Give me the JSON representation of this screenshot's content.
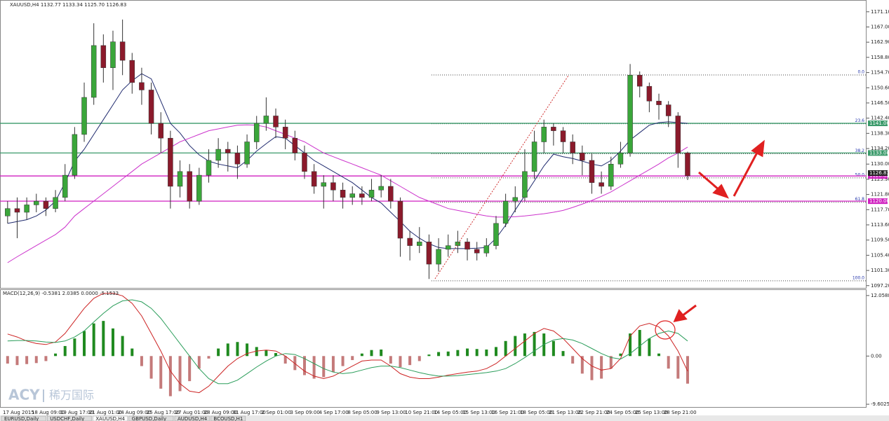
{
  "chart_data": [
    {
      "type": "candlestick",
      "title": "XAUUSD,H4 1132.77 1133.34 1125.70 1126.83",
      "categories": [
        "17 Aug 2015",
        null,
        null,
        "18 Aug 09:00",
        null,
        null,
        "19 Aug 17:00",
        null,
        null,
        "21 Aug 01:00",
        null,
        null,
        "24 Aug 09:00",
        null,
        null,
        "25 Aug 17:00",
        null,
        null,
        "27 Aug 01:00",
        null,
        null,
        "28 Aug 09:00",
        null,
        null,
        "31 Aug 17:00",
        null,
        null,
        "2 Sep 01:00",
        null,
        null,
        "3 Sep 09:00",
        null,
        null,
        "4 Sep 17:00",
        null,
        null,
        "8 Sep 05:00",
        null,
        null,
        "9 Sep 13:00",
        null,
        null,
        "10 Sep 21:00",
        null,
        null,
        "14 Sep 05:00",
        null,
        null,
        "15 Sep 13:00",
        null,
        null,
        "16 Sep 21:00",
        null,
        null,
        "18 Sep 05:00",
        null,
        null,
        "21 Sep 13:00",
        null,
        null,
        "22 Sep 21:00",
        null,
        null,
        "24 Sep 05:00",
        null,
        null,
        "25 Sep 13:00",
        null,
        null,
        "28 Sep 21:00",
        null,
        null
      ],
      "open": [
        1116,
        1118,
        1117,
        1119,
        1120,
        1118,
        1121,
        1127,
        1138,
        1148,
        1162,
        1156,
        1163,
        1158,
        1152,
        1150,
        1141,
        1137,
        1124,
        1128,
        1120,
        1127,
        1131,
        1134,
        1133,
        1130,
        1136,
        1141,
        1143,
        1140,
        1137,
        1133,
        1128,
        1124,
        1125,
        1123,
        1121,
        1122,
        1121,
        1123,
        1124,
        1120,
        1110,
        1108,
        1109,
        1103,
        1107,
        1108,
        1109,
        1107,
        1106,
        1108,
        1114,
        1120,
        1121,
        1128,
        1136,
        1140,
        1139,
        1136,
        1133,
        1131,
        1125,
        1124,
        1130,
        1133,
        1154,
        1151,
        1147,
        1146,
        1143,
        1133
      ],
      "high": [
        1120,
        1121,
        1121,
        1122,
        1121,
        1123,
        1130,
        1140,
        1152,
        1168,
        1165,
        1166,
        1169,
        1160,
        1156,
        1152,
        1144,
        1139,
        1131,
        1130,
        1129,
        1134,
        1137,
        1136,
        1135,
        1138,
        1143,
        1148,
        1145,
        1142,
        1139,
        1135,
        1130,
        1127,
        1127,
        1125,
        1124,
        1124,
        1126,
        1127,
        1126,
        1121,
        1112,
        1113,
        1111,
        1110,
        1111,
        1112,
        1110,
        1109,
        1110,
        1116,
        1122,
        1124,
        1134,
        1139,
        1142,
        1141,
        1140,
        1138,
        1135,
        1133,
        1128,
        1132,
        1136,
        1157,
        1155,
        1152,
        1149,
        1147,
        1144,
        1133.34
      ],
      "low": [
        1114,
        1110,
        1115,
        1117,
        1116,
        1117,
        1120,
        1126,
        1136,
        1146,
        1152,
        1150,
        1154,
        1149,
        1146,
        1138,
        1133,
        1118,
        1121,
        1118,
        1119,
        1125,
        1129,
        1128,
        1126,
        1129,
        1134,
        1139,
        1137,
        1134,
        1131,
        1126,
        1122,
        1118,
        1120,
        1118,
        1119,
        1119,
        1120,
        1121,
        1118,
        1105,
        1104,
        1106,
        1099,
        1101,
        1105,
        1106,
        1104,
        1104,
        1105,
        1107,
        1113,
        1117,
        1120,
        1126,
        1133,
        1135,
        1133,
        1130,
        1127,
        1122,
        1122,
        1123,
        1129,
        1132,
        1148,
        1144,
        1142,
        1140,
        1129,
        1125.7
      ],
      "close": [
        1118,
        1117,
        1119,
        1120,
        1118,
        1121,
        1127,
        1138,
        1148,
        1162,
        1156,
        1163,
        1158,
        1152,
        1150,
        1141,
        1137,
        1124,
        1128,
        1120,
        1127,
        1131,
        1134,
        1133,
        1130,
        1136,
        1141,
        1143,
        1140,
        1137,
        1133,
        1128,
        1124,
        1125,
        1123,
        1121,
        1122,
        1121,
        1123,
        1124,
        1120,
        1110,
        1108,
        1109,
        1103,
        1107,
        1108,
        1109,
        1107,
        1106,
        1108,
        1114,
        1120,
        1121,
        1128,
        1136,
        1140,
        1139,
        1136,
        1133,
        1131,
        1125,
        1124,
        1130,
        1133,
        1154,
        1151,
        1147,
        1146,
        1143,
        1133,
        1126.83
      ],
      "up_color": "#3aa63a",
      "down_color": "#8b1a2b",
      "lines": [
        {
          "color": "#1f2a6e",
          "values": [
            1114,
            1114.5,
            1115,
            1116,
            1117.6,
            1120,
            1125,
            1130.8,
            1134,
            1138,
            1142,
            1146,
            1150,
            1152.5,
            1154.4,
            1153,
            1147,
            1141,
            1138.4,
            1135,
            1132.5,
            1130.8,
            1130,
            1129.5,
            1129,
            1131,
            1133.5,
            1135.5,
            1137.4,
            1137,
            1135,
            1133,
            1131,
            1129.5,
            1128,
            1126.5,
            1125,
            1123,
            1121,
            1119.5,
            1117,
            1114.5,
            1111.9,
            1110,
            1108.5,
            1107.5,
            1107.2,
            1107.2,
            1107.2,
            1107.3,
            1107.5,
            1110,
            1113.5,
            1117.6,
            1121.5,
            1125.5,
            1129.5,
            1132.7,
            1132,
            1131.5,
            1130.8,
            1130,
            1129.5,
            1131,
            1133.5,
            1136.5,
            1138.5,
            1140.5,
            1141.2,
            1141.4,
            1141.2,
            1141
          ]
        },
        {
          "color": "#cc33cc",
          "values": [
            1103.4,
            1105,
            1106.5,
            1108,
            1109.5,
            1111,
            1113,
            1116,
            1118,
            1120,
            1122,
            1124,
            1126,
            1128,
            1130,
            1131.5,
            1133,
            1134.5,
            1136,
            1137,
            1138,
            1139,
            1139.5,
            1140,
            1140.5,
            1140.6,
            1140.5,
            1140,
            1139,
            1138,
            1137,
            1136,
            1134.5,
            1133,
            1132,
            1131,
            1130,
            1129,
            1128,
            1127,
            1125.5,
            1124,
            1122.5,
            1121,
            1120,
            1119,
            1118,
            1117.5,
            1117,
            1116.5,
            1116,
            1115.7,
            1115.7,
            1115.8,
            1116,
            1116.3,
            1116.6,
            1117,
            1117.5,
            1118.3,
            1119.2,
            1120.2,
            1121.3,
            1122.5,
            1124,
            1125.5,
            1127,
            1128.5,
            1130,
            1131.7,
            1133,
            1134.6
          ]
        }
      ],
      "levels": [
        {
          "value": 1141,
          "label": "1141.00",
          "color": "#3a9a6a"
        },
        {
          "value": 1133,
          "label": "1133.00",
          "color": "#3a9a6a"
        },
        {
          "value": 1126.8,
          "label": "1126.80",
          "color": "#d020c0"
        },
        {
          "value": 1120,
          "label": "1120.00",
          "color": "#d020c0"
        }
      ],
      "fib_levels": [
        {
          "label": "0.0",
          "price": 1154.05
        },
        {
          "label": "23.6",
          "price": 1140.9
        },
        {
          "label": "38.2",
          "price": 1132.8
        },
        {
          "label": "50.0",
          "price": 1126.3
        },
        {
          "label": "61.8",
          "price": 1119.7
        },
        {
          "label": "100.0",
          "price": 1098.5
        }
      ],
      "last_price": {
        "value": 1126.83,
        "label": "1126.83"
      },
      "ylim": [
        1096.4,
        1173.9
      ],
      "yticks": [
        {
          "value": 1171.1,
          "label": "1171.10"
        },
        {
          "value": 1167,
          "label": "1167.00"
        },
        {
          "value": 1162.9,
          "label": "1162.90"
        },
        {
          "value": 1158.8,
          "label": "1158.80"
        },
        {
          "value": 1154.7,
          "label": "1154.70"
        },
        {
          "value": 1150.6,
          "label": "1150.60"
        },
        {
          "value": 1146.5,
          "label": "1146.50"
        },
        {
          "value": 1142.4,
          "label": "1142.40"
        },
        {
          "value": 1138.3,
          "label": "1138.30"
        },
        {
          "value": 1134.2,
          "label": "1134.20"
        },
        {
          "value": 1130,
          "label": "1130.00"
        },
        {
          "value": 1125.9,
          "label": "1125.90"
        },
        {
          "value": 1121.8,
          "label": "1121.80"
        },
        {
          "value": 1117.7,
          "label": "1117.70"
        },
        {
          "value": 1113.6,
          "label": "1113.60"
        },
        {
          "value": 1109.5,
          "label": "1109.50"
        },
        {
          "value": 1105.4,
          "label": "1105.40"
        },
        {
          "value": 1101.3,
          "label": "1101.30"
        },
        {
          "value": 1097.2,
          "label": "1097.20"
        }
      ]
    },
    {
      "type": "macd",
      "title": "MACD(12,26,9) -0.5381 2.0385 0.0000 -5.1533",
      "histogram": {
        "up_color": "#1f8a1f",
        "down_color": "#c47a7a",
        "values": [
          -1.5,
          -1.8,
          -1.6,
          -1.4,
          -1.0,
          0.5,
          2.0,
          3.5,
          5.0,
          6.5,
          7.0,
          5.5,
          4.0,
          1.5,
          -2.0,
          -4.5,
          -6.5,
          -8.0,
          -7.0,
          -5.0,
          -2.5,
          -0.5,
          1.5,
          2.5,
          2.8,
          2.5,
          1.8,
          1.2,
          0.6,
          -1.5,
          -2.8,
          -3.8,
          -4.5,
          -4.2,
          -3.2,
          -2.0,
          -0.8,
          0.5,
          1.2,
          1.3,
          -1.5,
          -2.2,
          -1.8,
          -1.0,
          0.3,
          0.8,
          0.9,
          1.2,
          1.5,
          1.4,
          1.3,
          1.8,
          3.0,
          4.0,
          4.5,
          4.8,
          4.5,
          3.0,
          1.0,
          -1.5,
          -3.5,
          -4.8,
          -4.5,
          -2.5,
          0.5,
          4.5,
          5.2,
          3.5,
          0.5,
          -2.5,
          -4.5,
          -5.5
        ]
      },
      "series": [
        {
          "color": "#cc2222",
          "values": [
            4.4,
            3.8,
            3.0,
            2.5,
            2.3,
            2.8,
            4.5,
            7,
            9.5,
            11.5,
            12.5,
            12.5,
            12,
            10.5,
            8,
            4.5,
            1,
            -3,
            -5.5,
            -7,
            -7.3,
            -6,
            -4,
            -2,
            -0.5,
            0.5,
            1,
            1.2,
            1,
            0,
            -1.5,
            -3,
            -4,
            -4.5,
            -4,
            -3,
            -2,
            -1,
            -0.8,
            -0.8,
            -2,
            -3.5,
            -4.2,
            -4.5,
            -4.5,
            -4.2,
            -3.8,
            -3.5,
            -3.2,
            -3,
            -2.5,
            -1.5,
            0,
            1.5,
            3,
            4.5,
            5.5,
            5,
            3.5,
            1.5,
            -0.5,
            -2,
            -2.8,
            -2.5,
            -0.5,
            4,
            6,
            6.5,
            5.8,
            4,
            1,
            -3
          ]
        },
        {
          "color": "#2a9d5a",
          "values": [
            3,
            3.1,
            3.1,
            3,
            2.8,
            2.7,
            3,
            3.8,
            5,
            6.8,
            8.5,
            10,
            11,
            11.2,
            10.8,
            9.5,
            7.5,
            5,
            2.5,
            0,
            -2.5,
            -4.5,
            -5.5,
            -5.5,
            -4.8,
            -3.5,
            -2.2,
            -1,
            0,
            0.5,
            0.3,
            -0.5,
            -1.5,
            -2.5,
            -3.2,
            -3.5,
            -3.3,
            -2.8,
            -2.3,
            -2,
            -2,
            -2.3,
            -2.8,
            -3.3,
            -3.7,
            -4,
            -4,
            -3.9,
            -3.7,
            -3.5,
            -3.3,
            -3,
            -2.5,
            -1.5,
            -0.3,
            1,
            2.3,
            3.2,
            3.5,
            3.2,
            2.5,
            1.5,
            0.5,
            -0.3,
            -0.6,
            0.5,
            2,
            3.5,
            4.5,
            5,
            4.5,
            3
          ]
        }
      ],
      "ylim": [
        -10.29,
        13.16
      ],
      "yticks": [
        12.0588,
        {
          "value": 0,
          "label": "0.00"
        },
        -9.6025
      ]
    }
  ],
  "tabs": [
    "EURUSD,Daily",
    "USDCHF,Daily",
    "XAUUSD,H4",
    "GBPUSD,Daily",
    "AUDUSD,H4",
    "BCOUSD,H1"
  ],
  "watermark": {
    "brand": "ACY",
    "name": "稀万国际"
  }
}
